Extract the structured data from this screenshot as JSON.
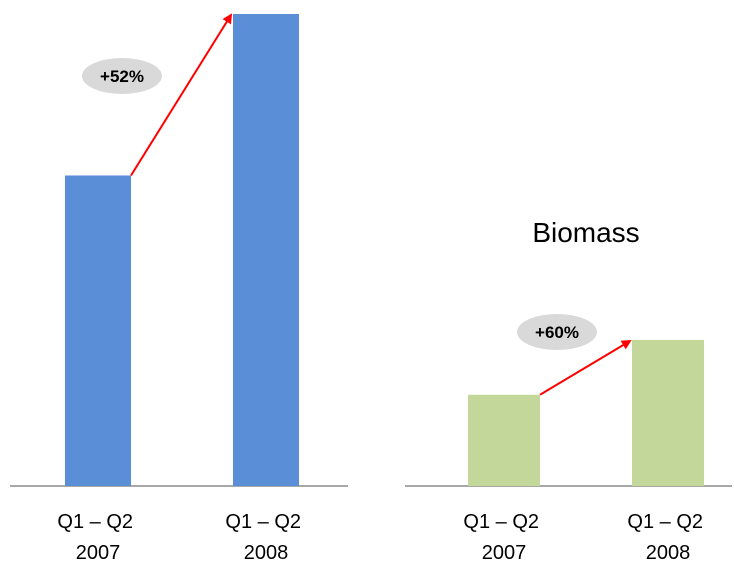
{
  "chart_data": [
    {
      "type": "bar",
      "title": "",
      "categories": [
        "Q1 – Q2 2007",
        "Q1 – Q2 2008"
      ],
      "category_lines": [
        [
          "Q1 – Q2",
          "2007"
        ],
        [
          "Q1 – Q2",
          "2008"
        ]
      ],
      "values": [
        100,
        152
      ],
      "y_axis_shown": false,
      "grid": false,
      "bar_color": "#5a8fd8",
      "annotation": {
        "text": "+52%",
        "arrow_color": "#ff0000",
        "badge_color": "#d9d9d9"
      }
    },
    {
      "type": "bar",
      "title": "Biomass",
      "categories": [
        "Q1 – Q2 2007",
        "Q1 – Q2 2008"
      ],
      "category_lines": [
        [
          "Q1 – Q2",
          "2007"
        ],
        [
          "Q1 – Q2",
          "2008"
        ]
      ],
      "values": [
        100,
        160
      ],
      "y_axis_shown": false,
      "grid": false,
      "bar_color": "#c4d79b",
      "annotation": {
        "text": "+60%",
        "arrow_color": "#ff0000",
        "badge_color": "#d9d9d9"
      }
    }
  ]
}
